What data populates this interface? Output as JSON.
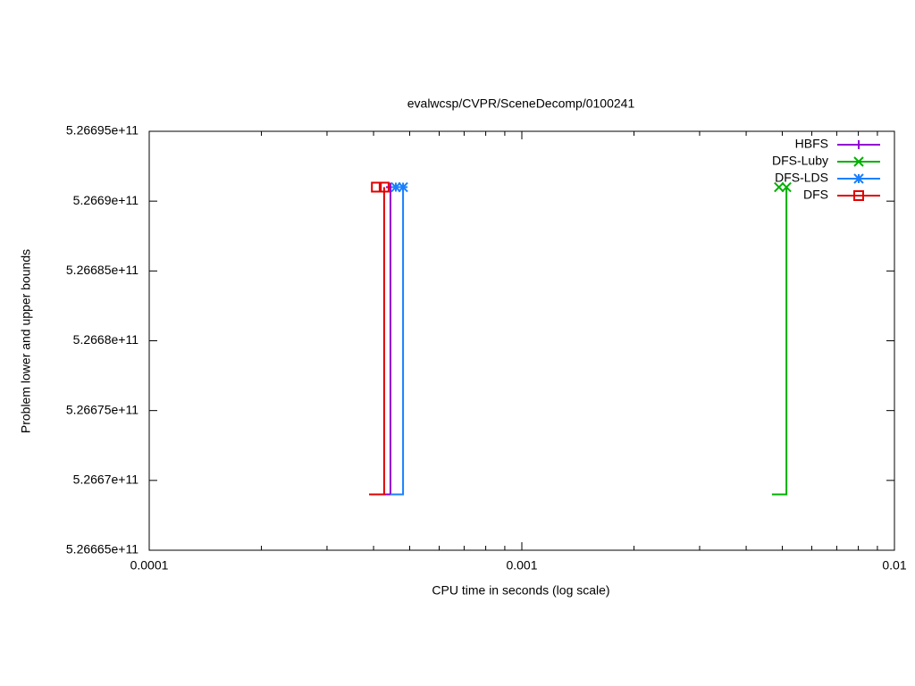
{
  "chart_data": {
    "type": "line",
    "title": "evalwcsp/CVPR/SceneDecomp/0100241",
    "xlabel": "CPU time in seconds (log scale)",
    "ylabel": "Problem lower and upper bounds",
    "xscale": "log",
    "xlim": [
      0.0001,
      0.01
    ],
    "xticks": [
      0.0001,
      0.001,
      0.01
    ],
    "xminorticks": [
      0.0002,
      0.0003,
      0.0004,
      0.0005,
      0.0006,
      0.0007,
      0.0008,
      0.0009,
      0.002,
      0.003,
      0.004,
      0.005,
      0.006,
      0.007,
      0.008,
      0.009
    ],
    "ylim": [
      526665000000,
      526695000000
    ],
    "yticks": [
      {
        "value": 526665000000,
        "label": "5.26665e+11"
      },
      {
        "value": 526670000000,
        "label": "5.2667e+11"
      },
      {
        "value": 526675000000,
        "label": "5.26675e+11"
      },
      {
        "value": 526680000000,
        "label": "5.2668e+11"
      },
      {
        "value": 526685000000,
        "label": "5.26685e+11"
      },
      {
        "value": 526690000000,
        "label": "5.2669e+11"
      },
      {
        "value": 526695000000,
        "label": "5.26695e+11"
      }
    ],
    "legend": "top-right",
    "series": [
      {
        "name": "HBFS",
        "color": "#9400d3",
        "marker": "plus",
        "x": [
          0.000427,
          0.000444,
          0.000444
        ],
        "y": [
          526669000000,
          526669000000,
          526691000000
        ],
        "marker_x": [
          0.000444
        ],
        "marker_y": [
          526691000000
        ]
      },
      {
        "name": "DFS-Luby",
        "color": "#00b000",
        "marker": "cross",
        "x": [
          0.00469,
          0.00513,
          0.00513
        ],
        "y": [
          526669000000,
          526669000000,
          526691000000
        ],
        "marker_x": [
          0.0049,
          0.00513
        ],
        "marker_y": [
          526691000000,
          526691000000
        ]
      },
      {
        "name": "DFS-LDS",
        "color": "#1a80ff",
        "marker": "star",
        "x": [
          0.000444,
          0.00048,
          0.00048
        ],
        "y": [
          526669000000,
          526669000000,
          526691000000
        ],
        "marker_x": [
          0.000459,
          0.00048
        ],
        "marker_y": [
          526691000000,
          526691000000
        ]
      },
      {
        "name": "DFS",
        "color": "#e00000",
        "marker": "square",
        "x": [
          0.000389,
          0.000427,
          0.000427
        ],
        "y": [
          526669000000,
          526669000000,
          526691000000
        ],
        "marker_x": [
          0.000407,
          0.000427
        ],
        "marker_y": [
          526691000000,
          526691000000
        ]
      }
    ]
  }
}
